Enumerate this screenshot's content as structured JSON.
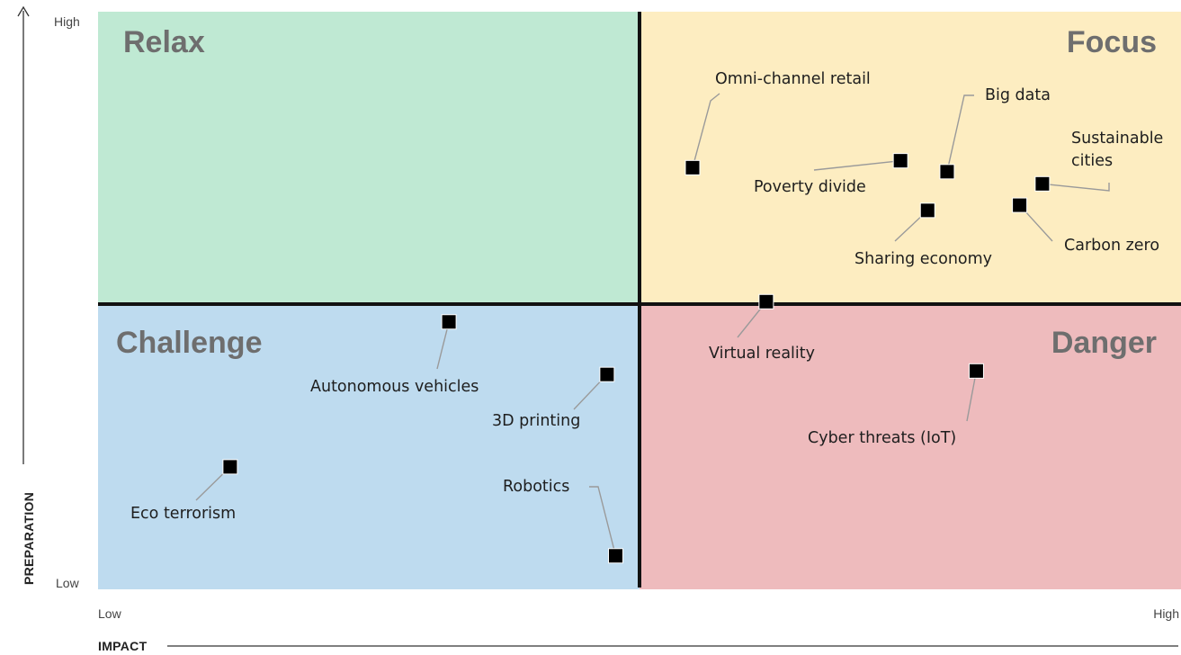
{
  "chart_data": {
    "type": "scatter",
    "xlabel": "IMPACT",
    "ylabel": "PREPARATION",
    "x_ticks": [
      "Low",
      "High"
    ],
    "y_ticks": [
      "Low",
      "High"
    ],
    "xlim": [
      0,
      100
    ],
    "ylim": [
      0,
      100
    ],
    "grid": false,
    "quadrants": [
      {
        "label": "Relax",
        "position": "top-left",
        "color": "#bfe9d3"
      },
      {
        "label": "Focus",
        "position": "top-right",
        "color": "#fdedc1"
      },
      {
        "label": "Challenge",
        "position": "bottom-left",
        "color": "#bedbef"
      },
      {
        "label": "Danger",
        "position": "bottom-right",
        "color": "#eebbbd"
      }
    ],
    "points": [
      {
        "label": "Omni-channel retail",
        "x": 54.9,
        "y": 73.0
      },
      {
        "label": "Big data",
        "x": 78.4,
        "y": 72.3
      },
      {
        "label": "Poverty divide",
        "x": 74.1,
        "y": 74.2
      },
      {
        "label": "Sustainable cities",
        "x": 87.2,
        "y": 70.2
      },
      {
        "label": "Sharing economy",
        "x": 76.6,
        "y": 65.6
      },
      {
        "label": "Carbon zero",
        "x": 85.1,
        "y": 66.5
      },
      {
        "label": "Virtual reality",
        "x": 61.7,
        "y": 49.8
      },
      {
        "label": "Cyber threats (IoT)",
        "x": 81.1,
        "y": 37.8
      },
      {
        "label": "Autonomous vehicles",
        "x": 32.4,
        "y": 46.3
      },
      {
        "label": "3D printing",
        "x": 47.0,
        "y": 37.2
      },
      {
        "label": "Eco terrorism",
        "x": 12.2,
        "y": 21.2
      },
      {
        "label": "Robotics",
        "x": 47.8,
        "y": 5.8
      }
    ]
  },
  "colors": {
    "axis": "#111111",
    "marker": "#000000",
    "leader": "#9a9a9a",
    "quadrant_title": "#6e6e6e"
  }
}
